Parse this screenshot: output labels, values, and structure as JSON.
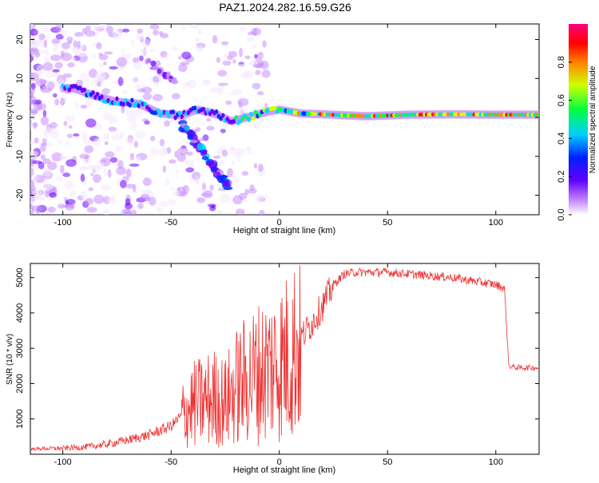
{
  "title": "PAZ1.2024.282.16.59.G26",
  "chart_data": [
    {
      "type": "heatmap",
      "xlabel": "Height of straight line (km)",
      "ylabel": "Frequency (Hz)",
      "xlim": [
        -115,
        120
      ],
      "ylim": [
        -25,
        24
      ],
      "xticks": [
        -100,
        -50,
        0,
        50,
        100
      ],
      "yticks": [
        -20,
        -10,
        0,
        10,
        20
      ],
      "colorbar": {
        "label": "Normalized spectral amplitude",
        "ticks": [
          0.0,
          0.2,
          0.4,
          0.6,
          0.8
        ],
        "range": [
          0,
          1
        ],
        "colors": [
          "#ffffff",
          "#7a00ff",
          "#0000ff",
          "#00ffff",
          "#00ff00",
          "#ffff00",
          "#ff8000",
          "#ff0000",
          "#ff0080"
        ]
      },
      "ridge": [
        {
          "x": -95,
          "y": 7.5
        },
        {
          "x": -85,
          "y": 5.5
        },
        {
          "x": -75,
          "y": 4
        },
        {
          "x": -65,
          "y": 3.5
        },
        {
          "x": -55,
          "y": 1
        },
        {
          "x": -45,
          "y": 0.5
        },
        {
          "x": -38,
          "y": 2
        },
        {
          "x": -30,
          "y": 1
        },
        {
          "x": -22,
          "y": -1
        },
        {
          "x": -15,
          "y": 0
        },
        {
          "x": -5,
          "y": 1.5
        },
        {
          "x": 0,
          "y": 2
        },
        {
          "x": 10,
          "y": 1
        },
        {
          "x": 20,
          "y": 0.8
        },
        {
          "x": 40,
          "y": 0.3
        },
        {
          "x": 60,
          "y": 0.7
        },
        {
          "x": 80,
          "y": 0.8
        },
        {
          "x": 100,
          "y": 0.7
        },
        {
          "x": 120,
          "y": 0.7
        }
      ]
    },
    {
      "type": "line",
      "xlabel": "Height of straight line (km)",
      "ylabel": "SNR (10 * v/v)",
      "xlim": [
        -115,
        120
      ],
      "ylim": [
        0,
        5400
      ],
      "xticks": [
        -100,
        -50,
        0,
        50,
        100
      ],
      "yticks": [
        1000,
        2000,
        3000,
        4000,
        5000
      ],
      "color": "#ee3333",
      "series": [
        {
          "x": [
            -115,
            -100,
            -90,
            -80,
            -70,
            -60,
            -50,
            -45,
            -40,
            -35,
            -30,
            -25,
            -20,
            -15,
            -10,
            -5,
            0,
            5,
            10,
            15,
            20,
            25,
            30,
            35,
            40,
            50,
            60,
            70,
            80,
            90,
            100,
            104,
            106,
            110,
            120
          ],
          "values": [
            150,
            170,
            200,
            280,
            400,
            550,
            800,
            1100,
            1400,
            1500,
            1600,
            1450,
            1900,
            2100,
            2300,
            2450,
            2600,
            2800,
            3300,
            3700,
            4200,
            4800,
            5100,
            5150,
            5150,
            5150,
            5100,
            5050,
            5000,
            4900,
            4800,
            4700,
            2500,
            2450,
            2450
          ]
        }
      ]
    }
  ]
}
